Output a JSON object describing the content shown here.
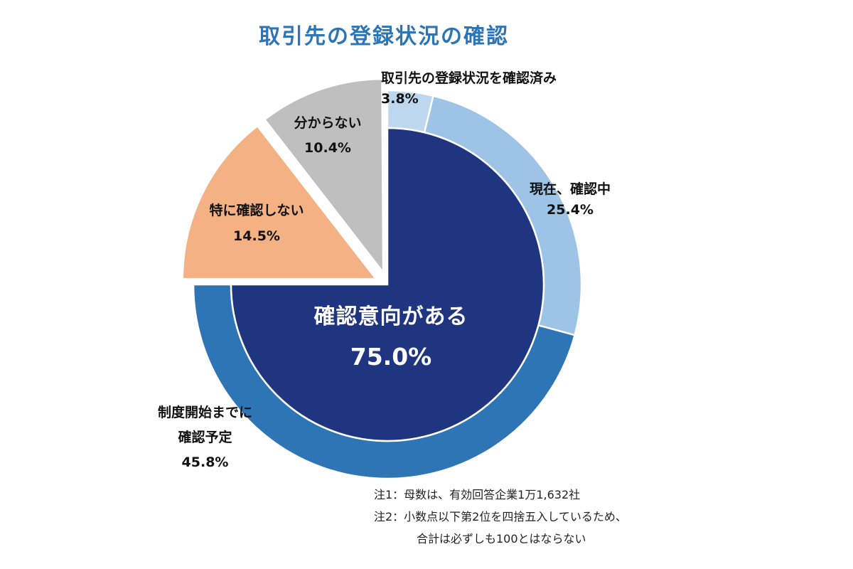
{
  "chart_data": {
    "type": "pie",
    "title": "取引先の登録状況の確認",
    "outer_ring": [
      {
        "label": "取引先の登録状況を確認済み",
        "value": 3.8,
        "display": "3.8%",
        "color": "#bdd7ee"
      },
      {
        "label": "現在、確認中",
        "value": 25.4,
        "display": "25.4%",
        "color": "#9dc3e6"
      },
      {
        "label": "制度開始までに確認予定",
        "label_lines": [
          "制度開始までに",
          "確認予定"
        ],
        "value": 45.8,
        "display": "45.8%",
        "color": "#2e75b6"
      }
    ],
    "inner_group": {
      "label": "確認意向がある",
      "value": 75.0,
      "display": "75.0%",
      "color": "#203580"
    },
    "separate_slices": [
      {
        "label": "特に確認しない",
        "value": 14.5,
        "display": "14.5%",
        "color": "#f4b183"
      },
      {
        "label": "分からない",
        "value": 10.4,
        "display": "10.4%",
        "color": "#bfbfbf"
      }
    ]
  },
  "notes": [
    "注1：母数は、有効回答企業1万1,632社",
    "注2：小数点以下第2位を四捨五入しているため、",
    "合計は必ずしも100とはならない"
  ]
}
